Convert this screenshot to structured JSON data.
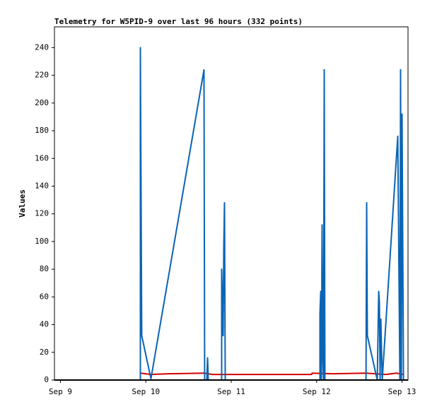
{
  "chart_data": {
    "type": "line",
    "title": "Telemetry for W5PID-9 over last 96 hours (332 points)",
    "y_label": "Values",
    "xlim": [
      -0.07,
      4.07
    ],
    "xticks": [
      {
        "value": 0,
        "label": "Sep 9"
      },
      {
        "value": 1,
        "label": "Sep 10"
      },
      {
        "value": 2,
        "label": "Sep 11"
      },
      {
        "value": 3,
        "label": "Sep 12"
      },
      {
        "value": 4,
        "label": "Sep 13"
      }
    ],
    "ylim": [
      0,
      255
    ],
    "yticks": [
      0,
      20,
      40,
      60,
      80,
      100,
      120,
      140,
      160,
      180,
      200,
      220,
      240
    ],
    "grid": false,
    "series": [
      {
        "color": "#d40000",
        "x": [
          0.936,
          1.06,
          1.259,
          1.681,
          1.781,
          2.94,
          2.948,
          3.188,
          3.578,
          3.81,
          3.934,
          4.017
        ],
        "values": [
          5,
          4,
          4.5,
          5,
          4,
          4,
          5,
          4.5,
          5,
          4,
          5,
          4
        ]
      },
      {
        "color": "#0a64b4",
        "x": [
          0.936,
          0.936,
          0.952,
          1.06,
          1.681,
          1.689,
          1.714,
          1.723,
          1.731,
          1.888,
          1.888,
          1.905,
          1.913,
          1.921,
          1.93,
          3.039,
          3.039,
          3.048,
          3.056,
          3.064,
          3.073,
          3.081,
          3.089,
          3.097,
          3.578,
          3.586,
          3.594,
          3.71,
          3.727,
          3.735,
          3.743,
          3.752,
          3.768,
          3.95,
          3.975,
          3.983,
          3.992,
          4.0,
          4.017
        ],
        "values": [
          0,
          240,
          32,
          1,
          224,
          0,
          0,
          16,
          0,
          0,
          80,
          32,
          96,
          128,
          0,
          0,
          48,
          64,
          0,
          112,
          16,
          0,
          224,
          0,
          0,
          128,
          32,
          0,
          64,
          56,
          0,
          44,
          0,
          176,
          0,
          224,
          0,
          192,
          0
        ]
      }
    ]
  }
}
